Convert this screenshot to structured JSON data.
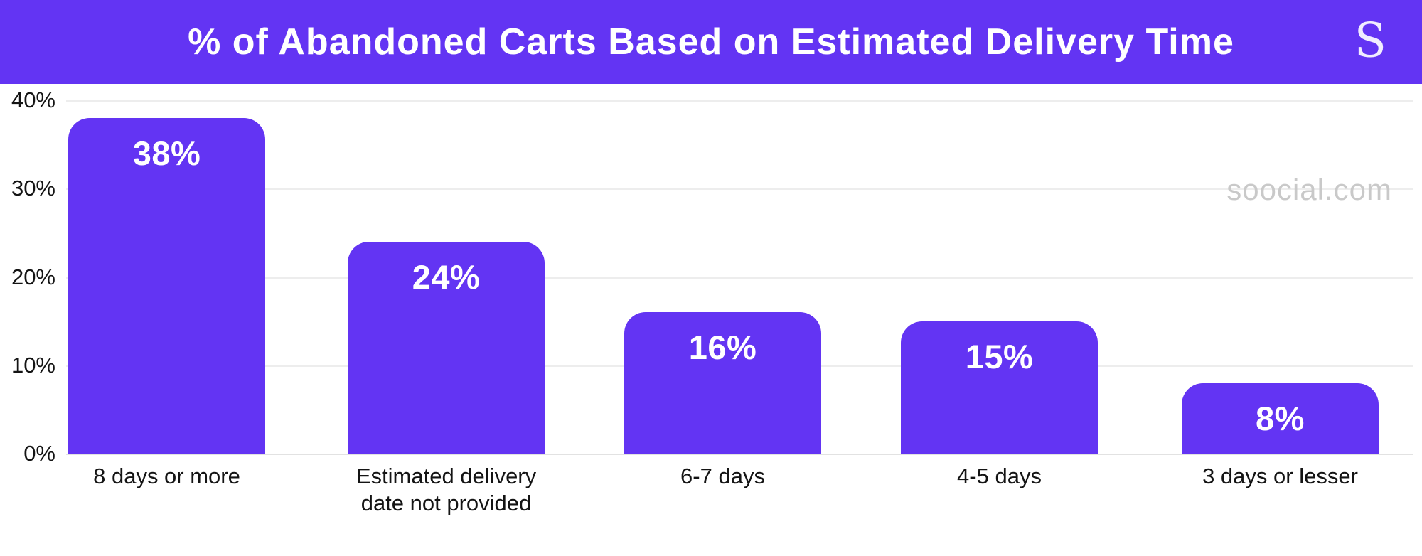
{
  "header": {
    "title": "% of Abandoned Carts Based on Estimated Delivery Time",
    "logo_letter": "S",
    "background_color": "#6334f3",
    "text_color": "#ffffff"
  },
  "watermark": "soocial.com",
  "colors": {
    "bar": "#6334f3",
    "gridline": "#ededed",
    "axis_text": "#141414",
    "value_label": "#ffffff",
    "watermark_text": "#c9c9c9"
  },
  "chart_data": {
    "type": "bar",
    "title": "% of Abandoned Carts Based on Estimated Delivery Time",
    "categories": [
      "8 days or more",
      "Estimated delivery\ndate not provided",
      "6-7 days",
      "4-5 days",
      "3 days or lesser"
    ],
    "values": [
      38,
      24,
      16,
      15,
      8
    ],
    "value_labels": [
      "38%",
      "24%",
      "16%",
      "15%",
      "8%"
    ],
    "xlabel": "",
    "ylabel": "",
    "ylim": [
      0,
      40
    ],
    "yticks": [
      0,
      10,
      20,
      30,
      40
    ],
    "ytick_labels": [
      "0%",
      "10%",
      "20%",
      "30%",
      "40%"
    ],
    "grid": true,
    "legend_position": "none"
  }
}
